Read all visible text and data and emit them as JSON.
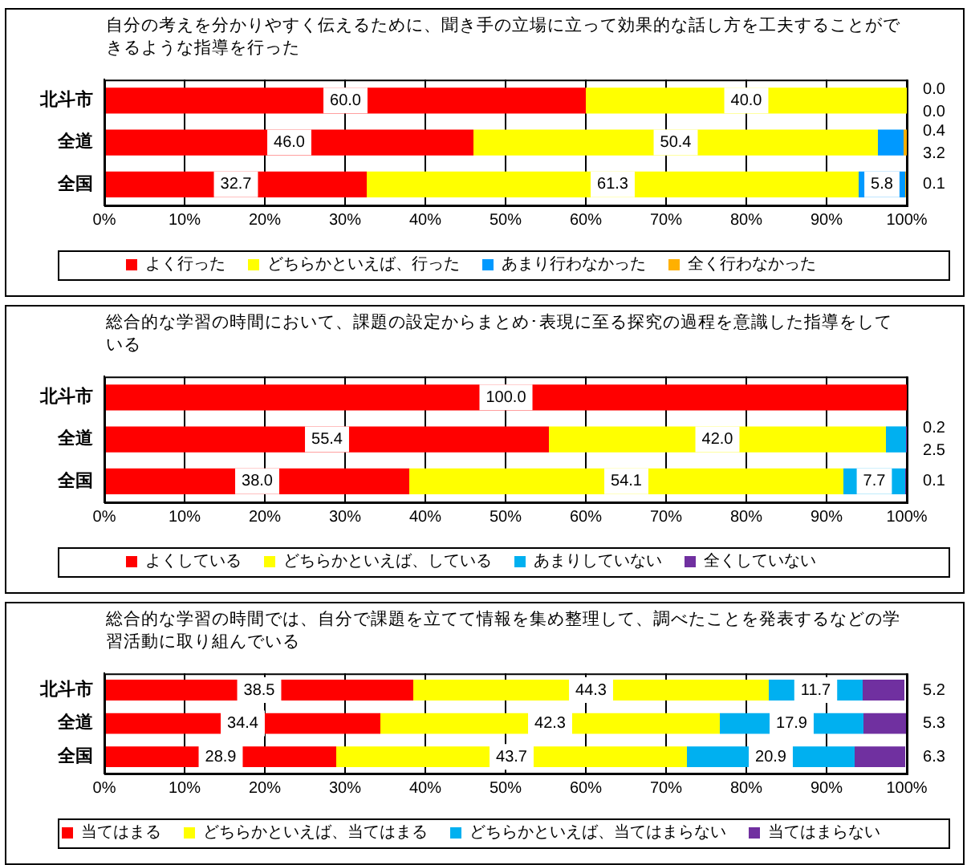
{
  "chart_data": [
    {
      "type": "bar",
      "orientation": "horizontal",
      "stacked": true,
      "title": "自分の考えを分かりやすく伝えるために、聞き手の立場に立って効果的な話し方を工夫することができるような指導を行った",
      "categories": [
        "北斗市",
        "全道",
        "全国"
      ],
      "series": [
        {
          "name": "よく行った",
          "color": "#ff0000",
          "values": [
            60.0,
            46.0,
            32.7
          ],
          "value_labels": [
            "60.0",
            "46.0",
            "32.7"
          ]
        },
        {
          "name": "どちらかといえば、行った",
          "color": "#ffff00",
          "values": [
            40.0,
            50.4,
            61.3
          ],
          "value_labels": [
            "40.0",
            "50.4",
            "61.3"
          ]
        },
        {
          "name": "あまり行わなかった",
          "color": "#0099ff",
          "values": [
            0.0,
            3.2,
            5.8
          ],
          "value_labels": [
            "0.0",
            "3.2",
            "5.8"
          ]
        },
        {
          "name": "全く行わなかった",
          "color": "#ffb000",
          "values": [
            0.0,
            0.4,
            0.1
          ],
          "value_labels": [
            "0.0",
            "0.4",
            "0.1"
          ]
        }
      ],
      "xlim": [
        0,
        100
      ],
      "xticks": [
        {
          "value": 0,
          "label": "0%"
        },
        {
          "value": 10,
          "label": "10%"
        },
        {
          "value": 20,
          "label": "20%"
        },
        {
          "value": 30,
          "label": "30%"
        },
        {
          "value": 40,
          "label": "40%"
        },
        {
          "value": 50,
          "label": "50%"
        },
        {
          "value": 60,
          "label": "60%"
        },
        {
          "value": 70,
          "label": "70%"
        },
        {
          "value": 80,
          "label": "80%"
        },
        {
          "value": 90,
          "label": "90%"
        },
        {
          "value": 100,
          "label": "100%"
        }
      ],
      "grid": "x",
      "legend": "bottom"
    },
    {
      "type": "bar",
      "orientation": "horizontal",
      "stacked": true,
      "title": "総合的な学習の時間において、課題の設定からまとめ･表現に至る探究の過程を意識した指導をしている",
      "categories": [
        "北斗市",
        "全道",
        "全国"
      ],
      "series": [
        {
          "name": "よくしている",
          "color": "#ff0000",
          "values": [
            100.0,
            55.4,
            38.0
          ],
          "value_labels": [
            "100.0",
            "55.4",
            "38.0"
          ]
        },
        {
          "name": "どちらかといえば、している",
          "color": "#ffff00",
          "values": [
            0,
            42.0,
            54.1
          ],
          "value_labels": [
            null,
            "42.0",
            "54.1"
          ]
        },
        {
          "name": "あまりしていない",
          "color": "#00b0f0",
          "values": [
            0,
            2.5,
            7.7
          ],
          "value_labels": [
            null,
            "2.5",
            "7.7"
          ]
        },
        {
          "name": "全くしていない",
          "color": "#7030a0",
          "values": [
            0,
            0.2,
            0.1
          ],
          "value_labels": [
            null,
            "0.2",
            "0.1"
          ]
        }
      ],
      "xlim": [
        0,
        100
      ],
      "xticks": [
        {
          "value": 0,
          "label": "0%"
        },
        {
          "value": 10,
          "label": "10%"
        },
        {
          "value": 20,
          "label": "20%"
        },
        {
          "value": 30,
          "label": "30%"
        },
        {
          "value": 40,
          "label": "40%"
        },
        {
          "value": 50,
          "label": "50%"
        },
        {
          "value": 60,
          "label": "60%"
        },
        {
          "value": 70,
          "label": "70%"
        },
        {
          "value": 80,
          "label": "80%"
        },
        {
          "value": 90,
          "label": "90%"
        },
        {
          "value": 100,
          "label": "100%"
        }
      ],
      "grid": "x",
      "legend": "bottom"
    },
    {
      "type": "bar",
      "orientation": "horizontal",
      "stacked": true,
      "title": "総合的な学習の時間では、自分で課題を立てて情報を集め整理して、調べたことを発表するなどの学習活動に取り組んでいる",
      "categories": [
        "北斗市",
        "全道",
        "全国"
      ],
      "series": [
        {
          "name": "当てはまる",
          "color": "#ff0000",
          "values": [
            38.5,
            34.4,
            28.9
          ],
          "value_labels": [
            "38.5",
            "34.4",
            "28.9"
          ]
        },
        {
          "name": "どちらかといえば、当てはまる",
          "color": "#ffff00",
          "values": [
            44.3,
            42.3,
            43.7
          ],
          "value_labels": [
            "44.3",
            "42.3",
            "43.7"
          ]
        },
        {
          "name": "どちらかといえば、当てはまらない",
          "color": "#00b0f0",
          "values": [
            11.7,
            17.9,
            20.9
          ],
          "value_labels": [
            "11.7",
            "17.9",
            "20.9"
          ]
        },
        {
          "name": "当てはまらない",
          "color": "#7030a0",
          "values": [
            5.2,
            5.3,
            6.3
          ],
          "value_labels": [
            "5.2",
            "5.3",
            "6.3"
          ]
        }
      ],
      "xlim": [
        0,
        100
      ],
      "xticks": [
        {
          "value": 0,
          "label": "0%"
        },
        {
          "value": 10,
          "label": "10%"
        },
        {
          "value": 20,
          "label": "20%"
        },
        {
          "value": 30,
          "label": "30%"
        },
        {
          "value": 40,
          "label": "40%"
        },
        {
          "value": 50,
          "label": "50%"
        },
        {
          "value": 60,
          "label": "60%"
        },
        {
          "value": 70,
          "label": "70%"
        },
        {
          "value": 80,
          "label": "80%"
        },
        {
          "value": 90,
          "label": "90%"
        },
        {
          "value": 100,
          "label": "100%"
        }
      ],
      "grid": "x",
      "legend": "bottom"
    }
  ]
}
